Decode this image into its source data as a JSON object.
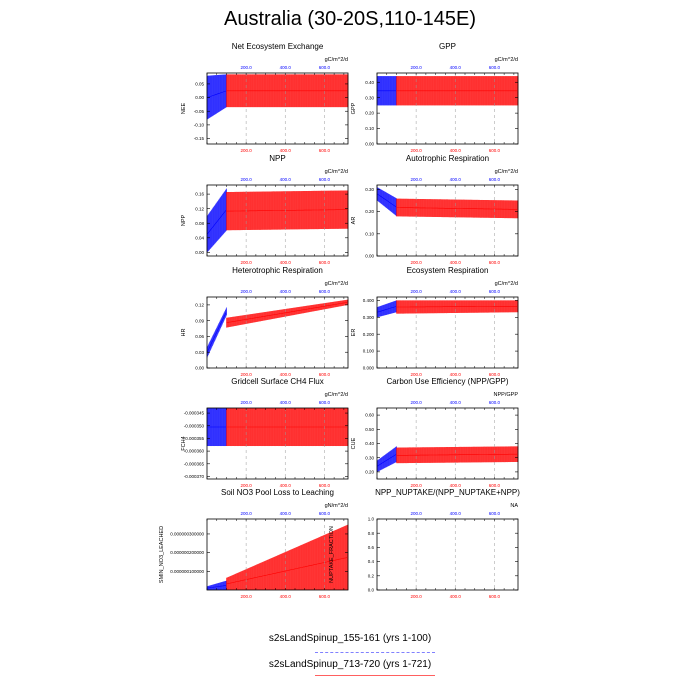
{
  "title": "Australia (30-20S,110-145E)",
  "colors": {
    "case1": "#0000ff",
    "case2": "#ff0000",
    "grid": "#999999"
  },
  "legend": [
    {
      "label": "s2sLandSpinup_155-161 (yrs 1-100)",
      "color": "#0000ff"
    },
    {
      "label": "s2sLandSpinup_713-720 (yrs 1-721)",
      "color": "#ff0000"
    }
  ],
  "chart_data": [
    {
      "type": "line",
      "title": "Net Ecosystem Exchange",
      "ylabel": "NEE",
      "units": "gC/m^2/d",
      "yticks": [
        "0.05",
        "0.00",
        "-0.05",
        "-0.10",
        "-0.15"
      ],
      "yvals": [
        0.05,
        0,
        -0.05,
        -0.1,
        -0.15
      ],
      "ylim": [
        -0.17,
        0.09
      ],
      "series": [
        {
          "x": [
            1,
            100
          ],
          "min": [
            -0.08,
            -0.035
          ],
          "max": [
            0.08,
            0.085
          ]
        },
        {
          "x": [
            1,
            721
          ],
          "min": [
            -0.035,
            -0.035
          ],
          "max": [
            0.085,
            0.085
          ]
        }
      ],
      "x_bottom_ticks": [
        "200.0",
        "400.0",
        "600.0"
      ],
      "x_top_ticks": [
        "200.0",
        "400.0",
        "600.0"
      ]
    },
    {
      "type": "line",
      "title": "GPP",
      "ylabel": "GPP",
      "units": "gC/m^2/d",
      "yticks": [
        "0.40",
        "0.30",
        "0.20",
        "0.10",
        "0.00"
      ],
      "yvals": [
        0.4,
        0.3,
        0.2,
        0.1,
        0
      ],
      "ylim": [
        0,
        0.46
      ],
      "series": [
        {
          "x": [
            1,
            100
          ],
          "min": [
            0.25,
            0.25
          ],
          "max": [
            0.44,
            0.44
          ]
        },
        {
          "x": [
            1,
            721
          ],
          "min": [
            0.25,
            0.25
          ],
          "max": [
            0.44,
            0.44
          ]
        }
      ],
      "x_bottom_ticks": [
        "200.0",
        "400.0",
        "600.0"
      ],
      "x_top_ticks": [
        "200.0",
        "400.0",
        "600.0"
      ]
    },
    {
      "type": "line",
      "title": "NPP",
      "ylabel": "NPP",
      "units": "gC/m^2/d",
      "yticks": [
        "0.16",
        "0.12",
        "0.08",
        "0.04",
        "0.00"
      ],
      "yvals": [
        0.16,
        0.12,
        0.08,
        0.04,
        0
      ],
      "ylim": [
        -0.01,
        0.185
      ],
      "series": [
        {
          "x": [
            1,
            100
          ],
          "min": [
            0.0,
            0.06
          ],
          "max": [
            0.1,
            0.175
          ]
        },
        {
          "x": [
            1,
            721
          ],
          "min": [
            0.06,
            0.065
          ],
          "max": [
            0.165,
            0.17
          ]
        }
      ],
      "x_bottom_ticks": [
        "200.0",
        "400.0",
        "600.0"
      ],
      "x_top_ticks": [
        "200.0",
        "400.0",
        "600.0"
      ]
    },
    {
      "type": "line",
      "title": "Autotrophic Respiration",
      "ylabel": "AR",
      "units": "gC/m^2/d",
      "yticks": [
        "0.30",
        "0.20",
        "0.10",
        "0.00"
      ],
      "yvals": [
        0.3,
        0.2,
        0.1,
        0
      ],
      "ylim": [
        0,
        0.32
      ],
      "series": [
        {
          "x": [
            1,
            100
          ],
          "min": [
            0.25,
            0.18
          ],
          "max": [
            0.31,
            0.26
          ]
        },
        {
          "x": [
            1,
            721
          ],
          "min": [
            0.18,
            0.17
          ],
          "max": [
            0.26,
            0.25
          ]
        }
      ],
      "x_bottom_ticks": [
        "200.0",
        "400.0",
        "600.0"
      ],
      "x_top_ticks": [
        "200.0",
        "400.0",
        "600.0"
      ]
    },
    {
      "type": "line",
      "title": "Heterotrophic Respiration",
      "ylabel": "HR",
      "units": "gC/m^2/d",
      "yticks": [
        "0.12",
        "0.09",
        "0.06",
        "0.03",
        "0.00"
      ],
      "yvals": [
        0.12,
        0.09,
        0.06,
        0.03,
        0
      ],
      "ylim": [
        0,
        0.135
      ],
      "series": [
        {
          "x": [
            1,
            100
          ],
          "min": [
            0.02,
            0.1
          ],
          "max": [
            0.04,
            0.115
          ]
        },
        {
          "x": [
            1,
            721
          ],
          "min": [
            0.07,
            0.12
          ],
          "max": [
            0.09,
            0.13
          ]
        }
      ],
      "x_bottom_ticks": [
        "200.0",
        "400.0",
        "600.0"
      ],
      "x_top_ticks": [
        "200.0",
        "400.0",
        "600.0"
      ]
    },
    {
      "type": "line",
      "title": "Ecosystem Respiration",
      "ylabel": "ER",
      "units": "gC/m^2/d",
      "yticks": [
        "0.400",
        "0.300",
        "0.200",
        "0.100",
        "0.000"
      ],
      "yvals": [
        0.4,
        0.3,
        0.2,
        0.1,
        0
      ],
      "ylim": [
        0,
        0.42
      ],
      "series": [
        {
          "x": [
            1,
            100
          ],
          "min": [
            0.3,
            0.33
          ],
          "max": [
            0.36,
            0.4
          ]
        },
        {
          "x": [
            1,
            721
          ],
          "min": [
            0.32,
            0.33
          ],
          "max": [
            0.4,
            0.4
          ]
        }
      ],
      "x_bottom_ticks": [
        "200.0",
        "400.0",
        "600.0"
      ],
      "x_top_ticks": [
        "200.0",
        "400.0",
        "600.0"
      ]
    },
    {
      "type": "line",
      "title": "Gridcell Surface CH4 Flux",
      "ylabel": "FCH4",
      "units": "gC/m^2/d",
      "yticks": [
        "-0.000345",
        "-0.000350",
        "-0.000355",
        "-0.000360",
        "-0.000365",
        "-0.000370"
      ],
      "yvals": [
        -0.000345,
        -0.00035,
        -0.000355,
        -0.00036,
        -0.000365,
        -0.00037
      ],
      "ylim": [
        -0.000371,
        -0.000343
      ],
      "series": [
        {
          "x": [
            1,
            100
          ],
          "min": [
            -0.000358,
            -0.000358
          ],
          "max": [
            -0.000343,
            -0.000343
          ]
        },
        {
          "x": [
            1,
            721
          ],
          "min": [
            -0.000358,
            -0.000358
          ],
          "max": [
            -0.000343,
            -0.000343
          ]
        }
      ],
      "x_bottom_ticks": [
        "200.0",
        "400.0",
        "600.0"
      ],
      "x_top_ticks": [
        "200.0",
        "400.0",
        "600.0"
      ]
    },
    {
      "type": "line",
      "title": "Carbon Use Efficiency (NPP/GPP)",
      "ylabel": "CUE",
      "units": "NPP/GPP",
      "yticks": [
        "0.60",
        "0.50",
        "0.40",
        "0.30",
        "0.20"
      ],
      "yvals": [
        0.6,
        0.5,
        0.4,
        0.3,
        0.2
      ],
      "ylim": [
        0.15,
        0.65
      ],
      "series": [
        {
          "x": [
            1,
            100
          ],
          "min": [
            0.2,
            0.27
          ],
          "max": [
            0.28,
            0.38
          ]
        },
        {
          "x": [
            1,
            721
          ],
          "min": [
            0.26,
            0.27
          ],
          "max": [
            0.37,
            0.38
          ]
        }
      ],
      "x_bottom_ticks": [
        "200.0",
        "400.0",
        "600.0"
      ],
      "x_top_ticks": [
        "200.0",
        "400.0",
        "600.0"
      ]
    },
    {
      "type": "line",
      "title": "Soil NO3 Pool Loss to Leaching",
      "ylabel": "SMIN_NO3_LEACHED",
      "units": "gN/m^2/d",
      "yticks": [
        "0.000000300000",
        "0.000000200000",
        "0.000000100000"
      ],
      "yvals": [
        3e-07,
        2e-07,
        1e-07
      ],
      "ylim": [
        0,
        3.8e-07
      ],
      "series": [
        {
          "x": [
            1,
            100
          ],
          "min": [
            0,
            0
          ],
          "max": [
            2e-08,
            5e-08
          ]
        },
        {
          "x": [
            1,
            721
          ],
          "min": [
            0,
            0
          ],
          "max": [
            2e-08,
            3.5e-07
          ]
        }
      ],
      "x_bottom_ticks": [
        "200.0",
        "400.0",
        "600.0"
      ],
      "x_top_ticks": [
        "200.0",
        "400.0",
        "600.0"
      ]
    },
    {
      "type": "line",
      "title": "NPP_NUPTAKE/(NPP_NUPTAKE+NPP)",
      "ylabel": "NUPTAKE_FRACTION",
      "units": "NA",
      "yticks": [
        "1.0",
        "0.8",
        "0.6",
        "0.4",
        "0.2",
        "0.0"
      ],
      "yvals": [
        1,
        0.8,
        0.6,
        0.4,
        0.2,
        0
      ],
      "ylim": [
        0,
        1
      ],
      "series": [],
      "x_bottom_ticks": [
        "200.0",
        "400.0",
        "600.0"
      ],
      "x_top_ticks": [
        "200.0",
        "400.0",
        "600.0"
      ]
    }
  ]
}
